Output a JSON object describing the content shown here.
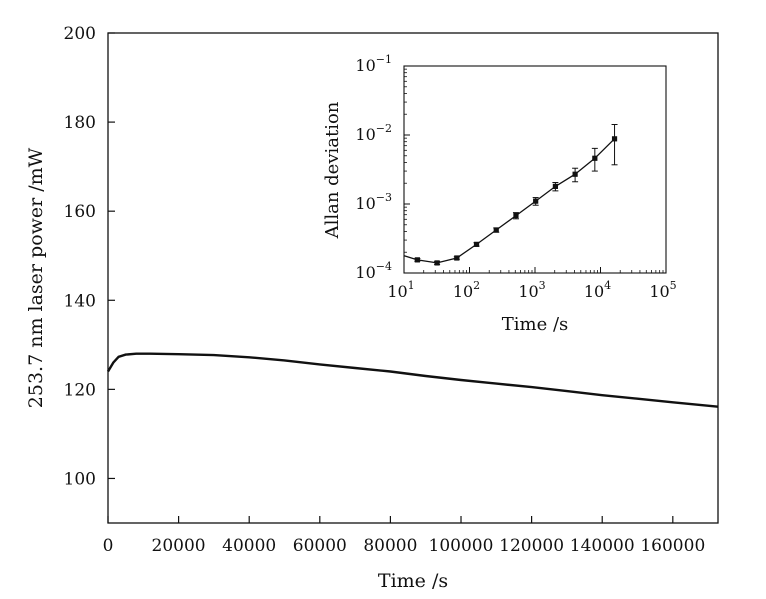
{
  "chart_data": [
    {
      "type": "line",
      "xlabel": "Time /s",
      "ylabel": "253.7 nm laser power /mW",
      "xlim": [
        0,
        172800
      ],
      "ylim": [
        90,
        200
      ],
      "x_ticks": [
        0,
        20000,
        40000,
        60000,
        80000,
        100000,
        120000,
        140000,
        160000
      ],
      "y_ticks": [
        100,
        120,
        140,
        160,
        180,
        200
      ],
      "grid": false,
      "series": [
        {
          "x": [
            0,
            1500,
            3000,
            5000,
            8000,
            12000,
            20000,
            30000,
            40000,
            50000,
            60000,
            70000,
            80000,
            90000,
            100000,
            110000,
            120000,
            130000,
            140000,
            150000,
            160000,
            172800
          ],
          "values": [
            124,
            126,
            127.3,
            127.8,
            128.0,
            128.0,
            127.9,
            127.7,
            127.2,
            126.5,
            125.6,
            124.8,
            124.0,
            123.0,
            122.1,
            121.3,
            120.5,
            119.6,
            118.7,
            117.9,
            117.1,
            116.1
          ]
        }
      ]
    },
    {
      "type": "scatter",
      "xlabel": "Time /s",
      "ylabel": "Allan deviation",
      "x_scale": "log",
      "y_scale": "log",
      "xlim": [
        10,
        100000
      ],
      "ylim": [
        0.0001,
        0.1
      ],
      "x_ticks": [
        {
          "value": 10,
          "base": "10",
          "exp": "1"
        },
        {
          "value": 100,
          "base": "10",
          "exp": "2"
        },
        {
          "value": 1000,
          "base": "10",
          "exp": "3"
        },
        {
          "value": 10000,
          "base": "10",
          "exp": "4"
        },
        {
          "value": 100000,
          "base": "10",
          "exp": "5"
        }
      ],
      "y_ticks": [
        {
          "value": 0.0001,
          "base": "10",
          "exp": "−4"
        },
        {
          "value": 0.001,
          "base": "10",
          "exp": "−3"
        },
        {
          "value": 0.01,
          "base": "10",
          "exp": "−2"
        },
        {
          "value": 0.1,
          "base": "10",
          "exp": "−1"
        }
      ],
      "grid": false,
      "series": [
        {
          "x": [
            16,
            32,
            64,
            128,
            256,
            512,
            1024,
            2048,
            4096,
            8192,
            16384
          ],
          "values": [
            0.000155,
            0.00014,
            0.000165,
            0.00026,
            0.00042,
            0.00068,
            0.0011,
            0.0018,
            0.0027,
            0.0046,
            0.0088
          ],
          "error_low": [
            0.000148,
            0.000133,
            0.000158,
            0.000245,
            0.00039,
            0.00061,
            0.00096,
            0.00155,
            0.0021,
            0.003,
            0.0037
          ],
          "error_high": [
            0.000162,
            0.000147,
            0.000172,
            0.000275,
            0.00045,
            0.00075,
            0.00124,
            0.00205,
            0.0033,
            0.0064,
            0.0142
          ]
        }
      ]
    }
  ]
}
